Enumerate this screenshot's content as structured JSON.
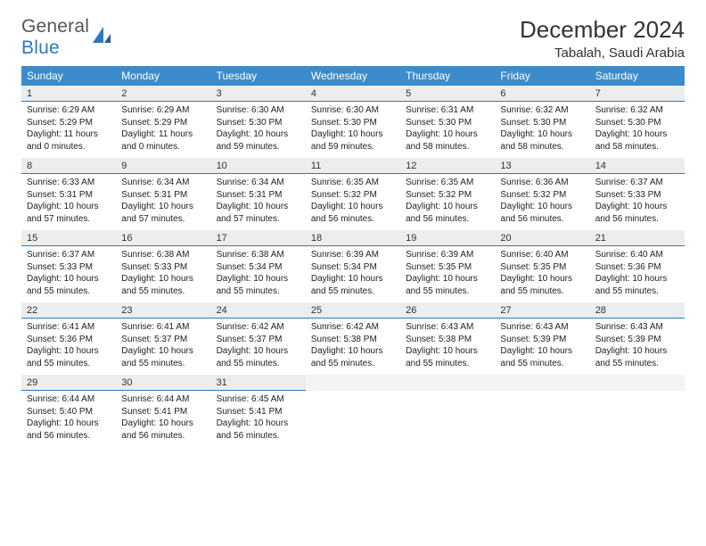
{
  "logo": {
    "line1": "General",
    "line2": "Blue"
  },
  "title": "December 2024",
  "subtitle": "Tabalah, Saudi Arabia",
  "colors": {
    "header_bg": "#3b8cce",
    "header_text": "#ffffff",
    "daynum_bg": "#eceeee",
    "daynum_border": "#2a7ac0",
    "logo_gray": "#555555",
    "logo_blue": "#2a7ac0",
    "text": "#222222"
  },
  "weekdays": [
    "Sunday",
    "Monday",
    "Tuesday",
    "Wednesday",
    "Thursday",
    "Friday",
    "Saturday"
  ],
  "labels": {
    "sunrise": "Sunrise: ",
    "sunset": "Sunset: ",
    "daylight": "Daylight: "
  },
  "grid_rows": 5,
  "grid_cols": 7,
  "days": [
    {
      "n": "1",
      "sr": "6:29 AM",
      "ss": "5:29 PM",
      "dl": "11 hours and 0 minutes."
    },
    {
      "n": "2",
      "sr": "6:29 AM",
      "ss": "5:29 PM",
      "dl": "11 hours and 0 minutes."
    },
    {
      "n": "3",
      "sr": "6:30 AM",
      "ss": "5:30 PM",
      "dl": "10 hours and 59 minutes."
    },
    {
      "n": "4",
      "sr": "6:30 AM",
      "ss": "5:30 PM",
      "dl": "10 hours and 59 minutes."
    },
    {
      "n": "5",
      "sr": "6:31 AM",
      "ss": "5:30 PM",
      "dl": "10 hours and 58 minutes."
    },
    {
      "n": "6",
      "sr": "6:32 AM",
      "ss": "5:30 PM",
      "dl": "10 hours and 58 minutes."
    },
    {
      "n": "7",
      "sr": "6:32 AM",
      "ss": "5:30 PM",
      "dl": "10 hours and 58 minutes."
    },
    {
      "n": "8",
      "sr": "6:33 AM",
      "ss": "5:31 PM",
      "dl": "10 hours and 57 minutes."
    },
    {
      "n": "9",
      "sr": "6:34 AM",
      "ss": "5:31 PM",
      "dl": "10 hours and 57 minutes."
    },
    {
      "n": "10",
      "sr": "6:34 AM",
      "ss": "5:31 PM",
      "dl": "10 hours and 57 minutes."
    },
    {
      "n": "11",
      "sr": "6:35 AM",
      "ss": "5:32 PM",
      "dl": "10 hours and 56 minutes."
    },
    {
      "n": "12",
      "sr": "6:35 AM",
      "ss": "5:32 PM",
      "dl": "10 hours and 56 minutes."
    },
    {
      "n": "13",
      "sr": "6:36 AM",
      "ss": "5:32 PM",
      "dl": "10 hours and 56 minutes."
    },
    {
      "n": "14",
      "sr": "6:37 AM",
      "ss": "5:33 PM",
      "dl": "10 hours and 56 minutes."
    },
    {
      "n": "15",
      "sr": "6:37 AM",
      "ss": "5:33 PM",
      "dl": "10 hours and 55 minutes."
    },
    {
      "n": "16",
      "sr": "6:38 AM",
      "ss": "5:33 PM",
      "dl": "10 hours and 55 minutes."
    },
    {
      "n": "17",
      "sr": "6:38 AM",
      "ss": "5:34 PM",
      "dl": "10 hours and 55 minutes."
    },
    {
      "n": "18",
      "sr": "6:39 AM",
      "ss": "5:34 PM",
      "dl": "10 hours and 55 minutes."
    },
    {
      "n": "19",
      "sr": "6:39 AM",
      "ss": "5:35 PM",
      "dl": "10 hours and 55 minutes."
    },
    {
      "n": "20",
      "sr": "6:40 AM",
      "ss": "5:35 PM",
      "dl": "10 hours and 55 minutes."
    },
    {
      "n": "21",
      "sr": "6:40 AM",
      "ss": "5:36 PM",
      "dl": "10 hours and 55 minutes."
    },
    {
      "n": "22",
      "sr": "6:41 AM",
      "ss": "5:36 PM",
      "dl": "10 hours and 55 minutes."
    },
    {
      "n": "23",
      "sr": "6:41 AM",
      "ss": "5:37 PM",
      "dl": "10 hours and 55 minutes."
    },
    {
      "n": "24",
      "sr": "6:42 AM",
      "ss": "5:37 PM",
      "dl": "10 hours and 55 minutes."
    },
    {
      "n": "25",
      "sr": "6:42 AM",
      "ss": "5:38 PM",
      "dl": "10 hours and 55 minutes."
    },
    {
      "n": "26",
      "sr": "6:43 AM",
      "ss": "5:38 PM",
      "dl": "10 hours and 55 minutes."
    },
    {
      "n": "27",
      "sr": "6:43 AM",
      "ss": "5:39 PM",
      "dl": "10 hours and 55 minutes."
    },
    {
      "n": "28",
      "sr": "6:43 AM",
      "ss": "5:39 PM",
      "dl": "10 hours and 55 minutes."
    },
    {
      "n": "29",
      "sr": "6:44 AM",
      "ss": "5:40 PM",
      "dl": "10 hours and 56 minutes."
    },
    {
      "n": "30",
      "sr": "6:44 AM",
      "ss": "5:41 PM",
      "dl": "10 hours and 56 minutes."
    },
    {
      "n": "31",
      "sr": "6:45 AM",
      "ss": "5:41 PM",
      "dl": "10 hours and 56 minutes."
    }
  ]
}
